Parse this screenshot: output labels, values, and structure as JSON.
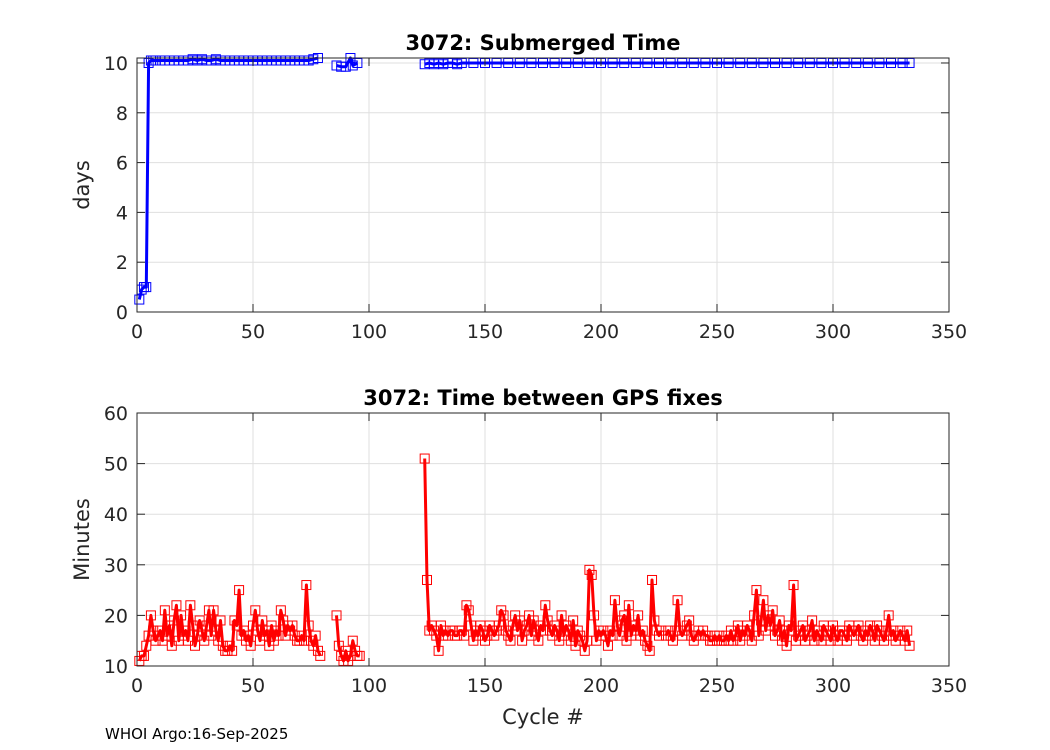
{
  "footer": "WHOI Argo:16-Sep-2025",
  "chart_data": [
    {
      "type": "line",
      "title": "3072: Submerged Time",
      "xlabel": "",
      "ylabel": "days",
      "xlim": [
        0,
        350
      ],
      "ylim": [
        0,
        10.2
      ],
      "xticks": [
        0,
        50,
        100,
        150,
        200,
        250,
        300,
        350
      ],
      "yticks": [
        0,
        2,
        4,
        6,
        8,
        10
      ],
      "grid": true,
      "color": "#0000ff",
      "marker": "square",
      "segments": [
        {
          "x": [
            1,
            2,
            3,
            4,
            5,
            6,
            7,
            8,
            10,
            12,
            14,
            16,
            18,
            20,
            22,
            24,
            26,
            28,
            30,
            32,
            34,
            36,
            38,
            40,
            42,
            44,
            46,
            48,
            50,
            52,
            54,
            56,
            58,
            60,
            62,
            64,
            66,
            68,
            70,
            72,
            74,
            76,
            78
          ],
          "y": [
            0.5,
            0.9,
            1.0,
            1.0,
            10.0,
            10.1,
            10.1,
            10.1,
            10.1,
            10.1,
            10.1,
            10.1,
            10.1,
            10.1,
            10.1,
            10.15,
            10.1,
            10.15,
            10.1,
            10.1,
            10.15,
            10.1,
            10.1,
            10.1,
            10.1,
            10.1,
            10.1,
            10.1,
            10.1,
            10.1,
            10.1,
            10.1,
            10.1,
            10.1,
            10.1,
            10.1,
            10.1,
            10.1,
            10.1,
            10.1,
            10.1,
            10.15,
            10.2
          ]
        },
        {
          "x": [
            86,
            88,
            90,
            92,
            93,
            95
          ],
          "y": [
            9.9,
            9.85,
            9.85,
            10.2,
            9.9,
            10.0
          ]
        },
        {
          "x": [
            124,
            126,
            128,
            130,
            132,
            134,
            136,
            138,
            140,
            145,
            150,
            155,
            160,
            165,
            170,
            175,
            180,
            185,
            190,
            195,
            200,
            205,
            210,
            215,
            220,
            225,
            230,
            235,
            240,
            245,
            250,
            255,
            260,
            265,
            270,
            275,
            280,
            285,
            290,
            295,
            300,
            305,
            310,
            315,
            320,
            325,
            330,
            333
          ],
          "y": [
            9.95,
            10.0,
            9.95,
            10.0,
            9.95,
            10.0,
            10.0,
            9.95,
            10.0,
            10.0,
            10.0,
            10.0,
            10.0,
            10.0,
            10.0,
            10.0,
            10.0,
            10.0,
            10.0,
            10.0,
            10.0,
            10.0,
            10.0,
            10.0,
            10.0,
            10.0,
            10.0,
            10.0,
            10.0,
            10.0,
            10.0,
            10.0,
            10.0,
            10.0,
            10.0,
            10.0,
            10.0,
            10.0,
            10.0,
            10.0,
            10.0,
            10.0,
            10.0,
            10.0,
            10.0,
            10.0,
            10.0,
            10.0
          ]
        }
      ]
    },
    {
      "type": "line",
      "title": "3072: Time between GPS fixes",
      "xlabel": "Cycle #",
      "ylabel": "Minutes",
      "xlim": [
        0,
        350
      ],
      "ylim": [
        10,
        60
      ],
      "xticks": [
        0,
        50,
        100,
        150,
        200,
        250,
        300,
        350
      ],
      "yticks": [
        10,
        20,
        30,
        40,
        50,
        60
      ],
      "grid": true,
      "color": "#ff0000",
      "marker": "square",
      "segments": [
        {
          "x": [
            1,
            2,
            3,
            4,
            5,
            6,
            7,
            8,
            9,
            10,
            11,
            12,
            13,
            14,
            15,
            16,
            17,
            18,
            19,
            20,
            21,
            22,
            23,
            24,
            25,
            26,
            27,
            28,
            29,
            30,
            31,
            32,
            33,
            34,
            35,
            36,
            37,
            38,
            39,
            40,
            41,
            42,
            43,
            44,
            45,
            46,
            47,
            48,
            49,
            50,
            51,
            52,
            53,
            54,
            55,
            56,
            57,
            58,
            59,
            60,
            61,
            62,
            63,
            64,
            65,
            66,
            67,
            68,
            69,
            70,
            71,
            72,
            73,
            74,
            75,
            76,
            77,
            78,
            79
          ],
          "y": [
            11,
            12,
            12,
            14,
            16,
            20,
            17,
            15,
            16,
            17,
            15,
            21,
            16,
            18,
            14,
            19,
            22,
            15,
            20,
            16,
            17,
            15,
            22,
            18,
            14,
            16,
            19,
            17,
            15,
            18,
            21,
            16,
            21,
            17,
            15,
            19,
            14,
            13,
            13,
            14,
            13,
            19,
            18,
            25,
            16,
            17,
            15,
            16,
            14,
            18,
            21,
            17,
            15,
            19,
            16,
            17,
            14,
            18,
            15,
            17,
            16,
            21,
            19,
            16,
            18,
            17,
            18,
            16,
            15,
            15,
            16,
            15,
            26,
            18,
            15,
            14,
            16,
            13,
            12
          ]
        },
        {
          "x": [
            86,
            87,
            88,
            89,
            90,
            91,
            92,
            93,
            94,
            95,
            96
          ],
          "y": [
            20,
            14,
            12,
            11,
            13,
            11,
            12,
            15,
            13,
            12,
            12
          ]
        },
        {
          "x": [
            124,
            125,
            126,
            127,
            128,
            129,
            130,
            131,
            132,
            133,
            134,
            135,
            136,
            137,
            138,
            139,
            140,
            141,
            142,
            143,
            144,
            145,
            146,
            147,
            148,
            149,
            150,
            151,
            152,
            153,
            154,
            155,
            156,
            157,
            158,
            159,
            160,
            161,
            162,
            163,
            164,
            165,
            166,
            167,
            168,
            169,
            170,
            171,
            172,
            173,
            174,
            175,
            176,
            177,
            178,
            179,
            180,
            181,
            182,
            183,
            184,
            185,
            186,
            187,
            188,
            189,
            190,
            191,
            192,
            193,
            194,
            195,
            196,
            197,
            198,
            199,
            200,
            201,
            202,
            203,
            204,
            205,
            206,
            207,
            208,
            209,
            210,
            211,
            212,
            213,
            214,
            215,
            216,
            217,
            218,
            219,
            220,
            221,
            222,
            223,
            224,
            225,
            226
          ],
          "y": [
            51,
            27,
            17,
            18,
            17,
            16,
            13,
            18,
            16,
            17,
            16,
            17,
            17,
            16,
            16,
            17,
            17,
            16,
            22,
            21,
            18,
            15,
            17,
            16,
            18,
            17,
            15,
            16,
            18,
            17,
            16,
            17,
            18,
            21,
            20,
            17,
            16,
            15,
            18,
            20,
            17,
            19,
            15,
            17,
            18,
            20,
            16,
            19,
            17,
            15,
            18,
            17,
            22,
            19,
            17,
            16,
            18,
            17,
            15,
            20,
            16,
            18,
            17,
            15,
            19,
            14,
            17,
            16,
            15,
            13,
            15,
            29,
            28,
            20,
            15,
            17,
            16,
            17,
            16,
            14,
            17,
            16,
            23,
            18,
            16,
            19,
            20,
            15,
            22,
            16,
            18,
            17,
            20,
            16,
            17,
            15,
            14,
            13,
            27,
            19,
            17,
            16,
            17
          ]
        },
        {
          "x": [
            228,
            229,
            230,
            231,
            232,
            233,
            234,
            235,
            236,
            237,
            238,
            239,
            240,
            241,
            242,
            243,
            244,
            245,
            246,
            247,
            248,
            249,
            250,
            251,
            252,
            253,
            254,
            255,
            256,
            257,
            258,
            259,
            260,
            261,
            262,
            263,
            264,
            265,
            266,
            267,
            268,
            269,
            270,
            271,
            272,
            273,
            274,
            275,
            276,
            277,
            278,
            279,
            280,
            281,
            282,
            283,
            284,
            285,
            286,
            287,
            288,
            289,
            290,
            291,
            292,
            293,
            294,
            295,
            296,
            297,
            298,
            299,
            300,
            301,
            302,
            303,
            304,
            305,
            306,
            307,
            308,
            309,
            310,
            311,
            312,
            313,
            314,
            315,
            316,
            317,
            318,
            319,
            320,
            321,
            322,
            323,
            324,
            325,
            326,
            327,
            328,
            329,
            330,
            331,
            332,
            333
          ],
          "y": [
            16,
            17,
            16,
            15,
            17,
            23,
            17,
            16,
            17,
            18,
            19,
            16,
            15,
            16,
            17,
            16,
            17,
            16,
            16,
            15,
            15,
            16,
            15,
            16,
            15,
            15,
            16,
            15,
            17,
            15,
            16,
            18,
            15,
            17,
            16,
            18,
            17,
            15,
            20,
            25,
            16,
            19,
            23,
            17,
            20,
            18,
            21,
            16,
            17,
            19,
            15,
            17,
            14,
            18,
            17,
            26,
            15,
            16,
            17,
            18,
            15,
            16,
            17,
            19,
            15,
            17,
            16,
            15,
            18,
            17,
            16,
            15,
            18,
            16,
            15,
            17,
            17,
            16,
            15,
            18,
            17,
            16,
            17,
            18,
            16,
            15,
            17,
            16,
            18,
            17,
            15,
            18,
            17,
            16,
            15,
            17,
            20,
            16,
            17,
            15,
            16,
            17,
            16,
            15,
            17,
            14
          ]
        }
      ]
    }
  ]
}
